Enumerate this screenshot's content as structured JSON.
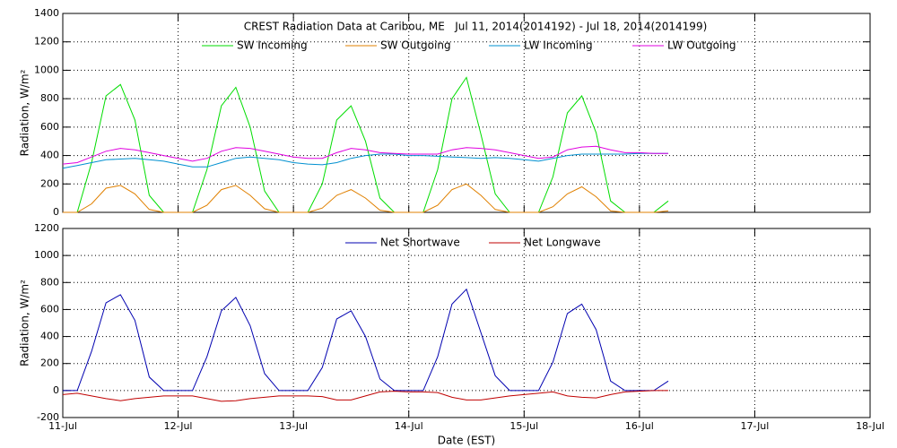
{
  "chart_data": [
    {
      "type": "line",
      "title": "CREST Radiation Data at Caribou, ME   Jul 11, 2014(2014192) - Jul 18, 2014(2014199)",
      "ylabel": "Radiation, W/m²",
      "x": [
        0,
        0.125,
        0.25,
        0.375,
        0.5,
        0.625,
        0.75,
        0.875,
        1,
        1.125,
        1.25,
        1.375,
        1.5,
        1.625,
        1.75,
        1.875,
        2,
        2.125,
        2.25,
        2.375,
        2.5,
        2.625,
        2.75,
        2.875,
        3,
        3.125,
        3.25,
        3.375,
        3.5,
        3.625,
        3.75,
        3.875,
        4,
        4.125,
        4.25,
        4.375,
        4.5,
        4.625,
        4.75,
        4.875,
        5,
        5.125,
        5.25
      ],
      "xlim": [
        0,
        7
      ],
      "xticks": [
        0,
        1,
        2,
        3,
        4,
        5,
        6,
        7
      ],
      "ylim": [
        0,
        1400
      ],
      "yticks": [
        0,
        200,
        400,
        600,
        800,
        1000,
        1200,
        1400
      ],
      "grid": true,
      "series": [
        {
          "name": "SW Incoming",
          "color": "#00dd00",
          "values": [
            0,
            0,
            350,
            820,
            900,
            650,
            120,
            0,
            0,
            0,
            300,
            750,
            880,
            600,
            150,
            0,
            0,
            0,
            200,
            650,
            750,
            500,
            100,
            0,
            0,
            0,
            300,
            800,
            950,
            550,
            130,
            0,
            0,
            0,
            250,
            700,
            820,
            560,
            80,
            0,
            0,
            0,
            80
          ]
        },
        {
          "name": "SW Outgoing",
          "color": "#e08000",
          "values": [
            0,
            0,
            60,
            170,
            190,
            130,
            20,
            0,
            0,
            0,
            50,
            160,
            190,
            120,
            25,
            0,
            0,
            0,
            30,
            120,
            160,
            100,
            15,
            0,
            0,
            0,
            50,
            160,
            200,
            120,
            20,
            0,
            0,
            0,
            40,
            130,
            180,
            110,
            10,
            0,
            0,
            0,
            10
          ]
        },
        {
          "name": "LW Incoming",
          "color": "#0090d0",
          "values": [
            310,
            330,
            350,
            370,
            375,
            380,
            370,
            360,
            340,
            320,
            320,
            350,
            380,
            390,
            380,
            370,
            350,
            340,
            335,
            350,
            380,
            400,
            410,
            410,
            400,
            400,
            395,
            390,
            385,
            380,
            385,
            380,
            370,
            360,
            380,
            400,
            410,
            410,
            410,
            410,
            415,
            415,
            415
          ]
        },
        {
          "name": "LW Outgoing",
          "color": "#e000e0",
          "values": [
            340,
            350,
            390,
            430,
            450,
            440,
            420,
            400,
            380,
            360,
            380,
            430,
            455,
            450,
            430,
            410,
            390,
            380,
            380,
            420,
            450,
            440,
            420,
            415,
            410,
            410,
            410,
            440,
            455,
            450,
            440,
            420,
            400,
            380,
            390,
            440,
            460,
            465,
            440,
            420,
            420,
            415,
            415
          ]
        }
      ]
    },
    {
      "type": "line",
      "ylabel": "Radiation, W/m²",
      "xlabel": "Date (EST)",
      "x": [
        0,
        0.125,
        0.25,
        0.375,
        0.5,
        0.625,
        0.75,
        0.875,
        1,
        1.125,
        1.25,
        1.375,
        1.5,
        1.625,
        1.75,
        1.875,
        2,
        2.125,
        2.25,
        2.375,
        2.5,
        2.625,
        2.75,
        2.875,
        3,
        3.125,
        3.25,
        3.375,
        3.5,
        3.625,
        3.75,
        3.875,
        4,
        4.125,
        4.25,
        4.375,
        4.5,
        4.625,
        4.75,
        4.875,
        5,
        5.125,
        5.25
      ],
      "xlim": [
        0,
        7
      ],
      "xticks": [
        {
          "value": 0,
          "label": "11-Jul"
        },
        {
          "value": 1,
          "label": "12-Jul"
        },
        {
          "value": 2,
          "label": "13-Jul"
        },
        {
          "value": 3,
          "label": "14-Jul"
        },
        {
          "value": 4,
          "label": "15-Jul"
        },
        {
          "value": 5,
          "label": "16-Jul"
        },
        {
          "value": 6,
          "label": "17-Jul"
        },
        {
          "value": 7,
          "label": "18-Jul"
        }
      ],
      "ylim": [
        -200,
        1200
      ],
      "yticks": [
        -200,
        0,
        200,
        400,
        600,
        800,
        1000,
        1200
      ],
      "grid": true,
      "series": [
        {
          "name": "Net Shortwave",
          "color": "#0000b0",
          "values": [
            0,
            0,
            290,
            650,
            710,
            520,
            100,
            0,
            0,
            0,
            250,
            590,
            690,
            480,
            125,
            0,
            0,
            0,
            170,
            530,
            590,
            400,
            85,
            0,
            0,
            0,
            250,
            640,
            750,
            430,
            110,
            0,
            0,
            0,
            210,
            570,
            640,
            450,
            70,
            0,
            0,
            0,
            70
          ]
        },
        {
          "name": "Net Longwave",
          "color": "#c00000",
          "values": [
            -30,
            -20,
            -40,
            -60,
            -75,
            -60,
            -50,
            -40,
            -40,
            -40,
            -60,
            -80,
            -75,
            -60,
            -50,
            -40,
            -40,
            -40,
            -45,
            -70,
            -70,
            -40,
            -10,
            -5,
            -10,
            -10,
            -15,
            -50,
            -70,
            -70,
            -55,
            -40,
            -30,
            -20,
            -10,
            -40,
            -50,
            -55,
            -30,
            -10,
            -5,
            0,
            0
          ]
        }
      ]
    }
  ]
}
